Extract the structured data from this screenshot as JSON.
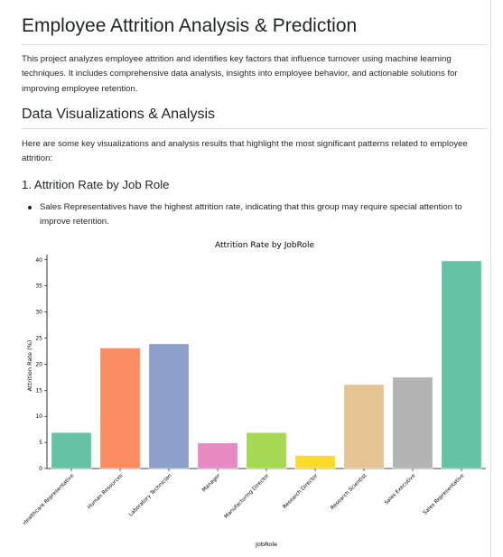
{
  "title": "Employee Attrition Analysis & Prediction",
  "intro": "This project analyzes employee attrition and identifies key factors that influence turnover using machine learning techniques. It includes comprehensive data analysis, insights into employee behavior, and actionable solutions for improving employee retention.",
  "section_heading": "Data Visualizations & Analysis",
  "section_intro": "Here are some key visualizations and analysis results that highlight the most significant patterns related to employee attrition:",
  "subsection_heading": "1. Attrition Rate by Job Role",
  "bullets": [
    "Sales Representatives have the highest attrition rate, indicating that this group may require special attention to improve retention."
  ],
  "chart_data": {
    "type": "bar",
    "title": "Attrition Rate by JobRole",
    "xlabel": "JobRole",
    "ylabel": "Attrition Rate (%)",
    "ylim": [
      0,
      41
    ],
    "yticks": [
      0,
      5,
      10,
      15,
      20,
      25,
      30,
      35,
      40
    ],
    "categories": [
      "Healthcare Representative",
      "Human Resources",
      "Laboratory Technician",
      "Manager",
      "Manufacturing Director",
      "Research Director",
      "Research Scientist",
      "Sales Executive",
      "Sales Representative"
    ],
    "values": [
      6.9,
      23.1,
      23.9,
      4.9,
      6.9,
      2.5,
      16.1,
      17.5,
      39.8
    ],
    "colors": [
      "#66c2a5",
      "#fc8d62",
      "#8da0cb",
      "#e78ac3",
      "#a6d854",
      "#ffd92f",
      "#e5c494",
      "#b3b3b3",
      "#66c2a5"
    ],
    "grid": false
  }
}
